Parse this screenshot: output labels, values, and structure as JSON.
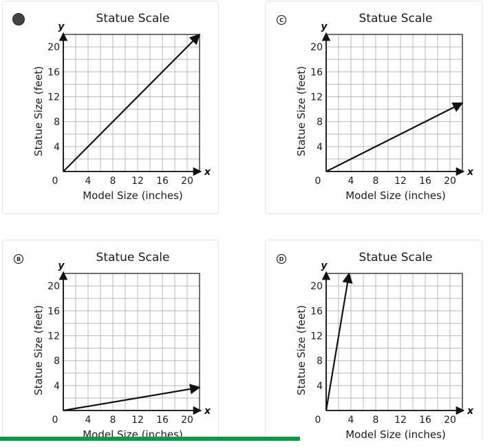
{
  "options": [
    {
      "letter": "",
      "selected": true
    },
    {
      "letter": "C",
      "selected": false
    },
    {
      "letter": "B",
      "selected": false
    },
    {
      "letter": "D",
      "selected": false
    }
  ],
  "chart_data": [
    {
      "type": "line",
      "title": "Statue Scale",
      "xlabel": "Model Size (inches)",
      "ylabel": "Statue Size (feet)",
      "x_var": "x",
      "y_var": "y",
      "origin_label": "0",
      "xticks": [
        "4",
        "8",
        "12",
        "16",
        "20"
      ],
      "yticks": [
        "4",
        "8",
        "12",
        "16",
        "20"
      ],
      "xlim": [
        0,
        22
      ],
      "ylim": [
        0,
        22
      ],
      "grid": true,
      "x": [
        0,
        22
      ],
      "y": [
        0,
        22
      ]
    },
    {
      "type": "line",
      "title": "Statue Scale",
      "xlabel": "Model Size (inches)",
      "ylabel": "Statue Size (feet)",
      "x_var": "x",
      "y_var": "y",
      "origin_label": "0",
      "xticks": [
        "4",
        "8",
        "12",
        "16",
        "20"
      ],
      "yticks": [
        "4",
        "8",
        "12",
        "16",
        "20"
      ],
      "xlim": [
        0,
        22
      ],
      "ylim": [
        0,
        22
      ],
      "grid": true,
      "x": [
        0,
        22
      ],
      "y": [
        0,
        11
      ]
    },
    {
      "type": "line",
      "title": "Statue Scale",
      "xlabel": "Model Size (inches)",
      "ylabel": "Statue Size (feet)",
      "x_var": "x",
      "y_var": "y",
      "origin_label": "0",
      "xticks": [
        "4",
        "8",
        "12",
        "16",
        "20"
      ],
      "yticks": [
        "4",
        "8",
        "12",
        "16",
        "20"
      ],
      "xlim": [
        0,
        22
      ],
      "ylim": [
        0,
        22
      ],
      "grid": true,
      "x": [
        0,
        22
      ],
      "y": [
        0,
        3.7
      ]
    },
    {
      "type": "line",
      "title": "Statue Scale",
      "xlabel": "Model Size (inches)",
      "ylabel": "Statue Size (feet)",
      "x_var": "x",
      "y_var": "y",
      "origin_label": "0",
      "xticks": [
        "4",
        "8",
        "12",
        "16",
        "20"
      ],
      "yticks": [
        "4",
        "8",
        "12",
        "16",
        "20"
      ],
      "xlim": [
        0,
        22
      ],
      "ylim": [
        0,
        22
      ],
      "grid": true,
      "x": [
        0,
        3.7
      ],
      "y": [
        0,
        22
      ]
    }
  ]
}
